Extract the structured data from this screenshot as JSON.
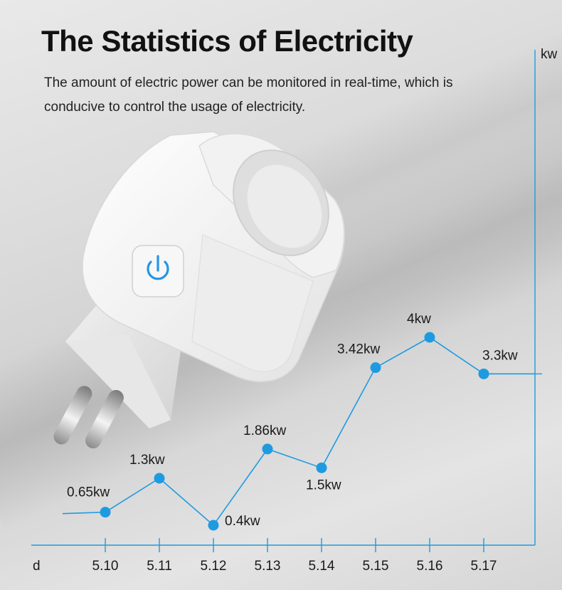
{
  "header": {
    "title": "The Statistics of Electricity",
    "subtitle": "The amount of electric power can be monitored in real-time, which is conducive to control the usage of electricity."
  },
  "product": {
    "icon": "power-icon"
  },
  "chart_data": {
    "type": "line",
    "title": "",
    "xlabel": "d",
    "ylabel": "kw",
    "categories": [
      "5.10",
      "5.11",
      "5.12",
      "5.13",
      "5.14",
      "5.15",
      "5.16",
      "5.17"
    ],
    "values": [
      0.65,
      1.3,
      0.4,
      1.86,
      1.5,
      3.42,
      4,
      3.3
    ],
    "data_labels": [
      "0.65kw",
      "1.3kw",
      "0.4kw",
      "1.86kw",
      "1.5kw",
      "3.42kw",
      "4kw",
      "3.3kw"
    ],
    "color": "#1e9be0",
    "grid": false
  }
}
